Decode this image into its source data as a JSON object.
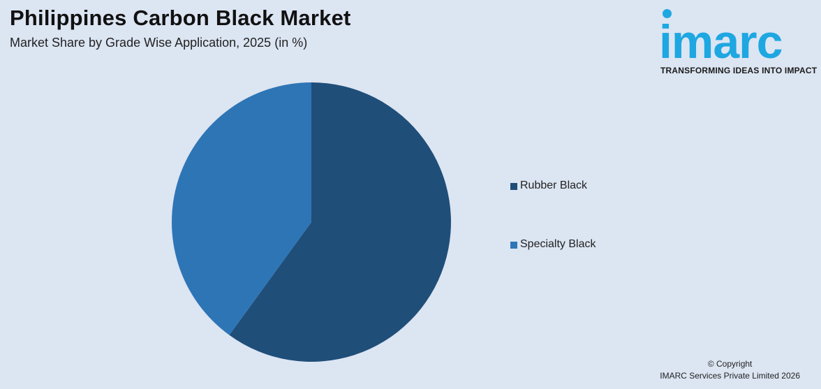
{
  "header": {
    "title": "Philippines Carbon Black Market",
    "subtitle": "Market Share by Grade Wise Application, 2025 (in %)"
  },
  "logo": {
    "wordmark": "imarc",
    "tagline": "TRANSFORMING IDEAS INTO IMPACT",
    "color": "#1ea7e1"
  },
  "chart_data": {
    "type": "pie",
    "title": "Philippines Carbon Black Market",
    "subtitle": "Market Share by Grade Wise Application, 2025 (in %)",
    "categories": [
      "Rubber Black",
      "Specialty Black"
    ],
    "values": [
      60,
      40
    ],
    "colors": [
      "#1f4e79",
      "#2e75b6"
    ],
    "start_angle_deg": 0,
    "direction": "clockwise",
    "legend_position": "right",
    "data_labels": false
  },
  "footer": {
    "copyright": "© Copyright",
    "company": "IMARC Services Private Limited 2026"
  }
}
